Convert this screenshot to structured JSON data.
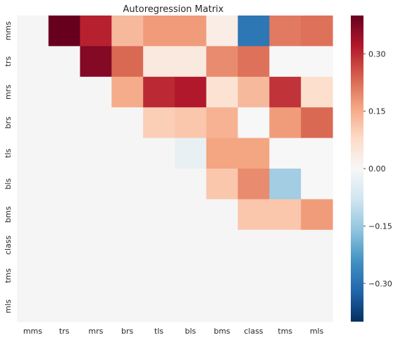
{
  "chart_data": {
    "type": "heatmap",
    "title": "Autoregression Matrix",
    "xlabel": "",
    "ylabel": "",
    "x_categories": [
      "mms",
      "trs",
      "mrs",
      "brs",
      "tls",
      "bls",
      "bms",
      "class",
      "tms",
      "mls"
    ],
    "y_categories": [
      "mms",
      "trs",
      "mrs",
      "brs",
      "tls",
      "bls",
      "bms",
      "class",
      "tms",
      "mls"
    ],
    "values": [
      [
        null,
        0.4,
        0.31,
        0.13,
        0.17,
        0.17,
        0.03,
        -0.29,
        0.21,
        0.22
      ],
      [
        null,
        null,
        0.37,
        0.23,
        0.04,
        0.04,
        0.19,
        0.22,
        0.0,
        0.0
      ],
      [
        null,
        null,
        null,
        0.15,
        0.3,
        0.32,
        0.06,
        0.13,
        0.29,
        0.07
      ],
      [
        null,
        null,
        null,
        null,
        0.1,
        0.11,
        0.14,
        0.0,
        0.17,
        0.23
      ],
      [
        null,
        null,
        null,
        null,
        null,
        -0.03,
        0.16,
        0.16,
        0.0,
        0.0
      ],
      [
        null,
        null,
        null,
        null,
        null,
        null,
        0.11,
        0.19,
        -0.14,
        0.0
      ],
      [
        null,
        null,
        null,
        null,
        null,
        null,
        null,
        0.11,
        0.11,
        0.17
      ],
      [
        null,
        null,
        null,
        null,
        null,
        null,
        null,
        null,
        null,
        null
      ],
      [
        null,
        null,
        null,
        null,
        null,
        null,
        null,
        null,
        null,
        null
      ],
      [
        null,
        null,
        null,
        null,
        null,
        null,
        null,
        null,
        null,
        null
      ]
    ],
    "missing_color": "#f5f5f5",
    "colorbar": {
      "vmin": -0.4,
      "vmax": 0.4,
      "ticks": [
        0.3,
        0.15,
        0.0,
        -0.15,
        -0.3
      ],
      "tick_labels": [
        "0.30",
        "0.15",
        "0.00",
        "−0.15",
        "−0.30"
      ],
      "colormap": "RdBu_r"
    }
  }
}
